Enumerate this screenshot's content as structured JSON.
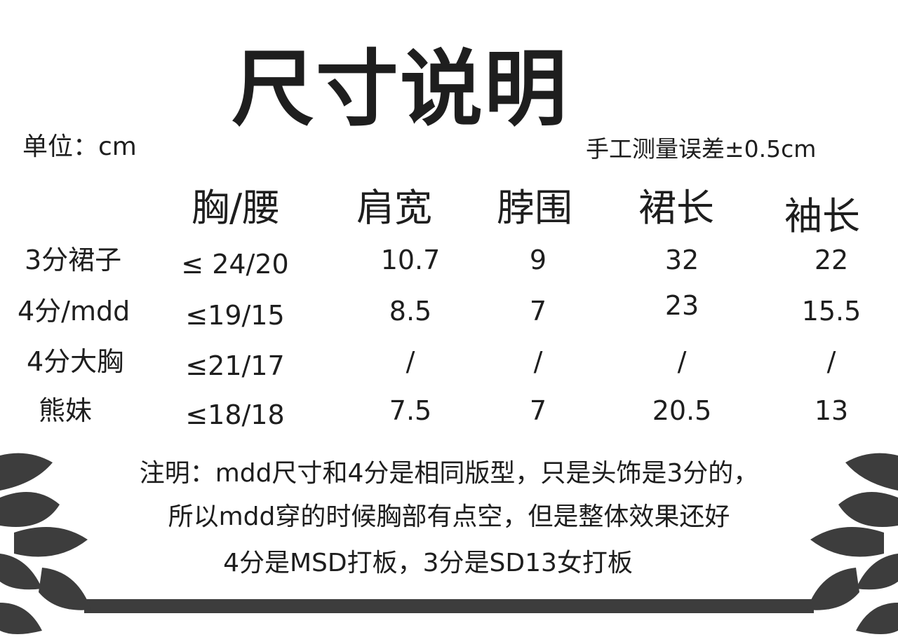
{
  "title": "尺寸说明",
  "unit": "单位：cm",
  "error_note": "手工测量误差±0.5cm",
  "table": {
    "headers": [
      "胸/腰",
      "肩宽",
      "脖围",
      "裙长",
      "袖长"
    ],
    "rows": [
      {
        "label": "3分裙子",
        "values": [
          "≤ 24/20",
          "10.7",
          "9",
          "32",
          "22"
        ]
      },
      {
        "label": "4分/mdd",
        "values": [
          "≤19/15",
          "8.5",
          "7",
          "23",
          "15.5"
        ]
      },
      {
        "label": "4分大胸",
        "values": [
          "≤21/17",
          "/",
          "/",
          "/",
          "/"
        ]
      },
      {
        "label": "熊妹",
        "values": [
          "≤18/18",
          "7.5",
          "7",
          "20.5",
          "13"
        ]
      }
    ]
  },
  "notes": [
    "注明：mdd尺寸和4分是相同版型，只是头饰是3分的，",
    "所以mdd穿的时候胸部有点空，但是整体效果还好",
    "4分是MSD打板，3分是SD13女打板"
  ],
  "colors": {
    "text": "#1e1e1e",
    "decoration": "#3d3d3d",
    "background": "#ffffff"
  },
  "decoration": "leaf-border"
}
